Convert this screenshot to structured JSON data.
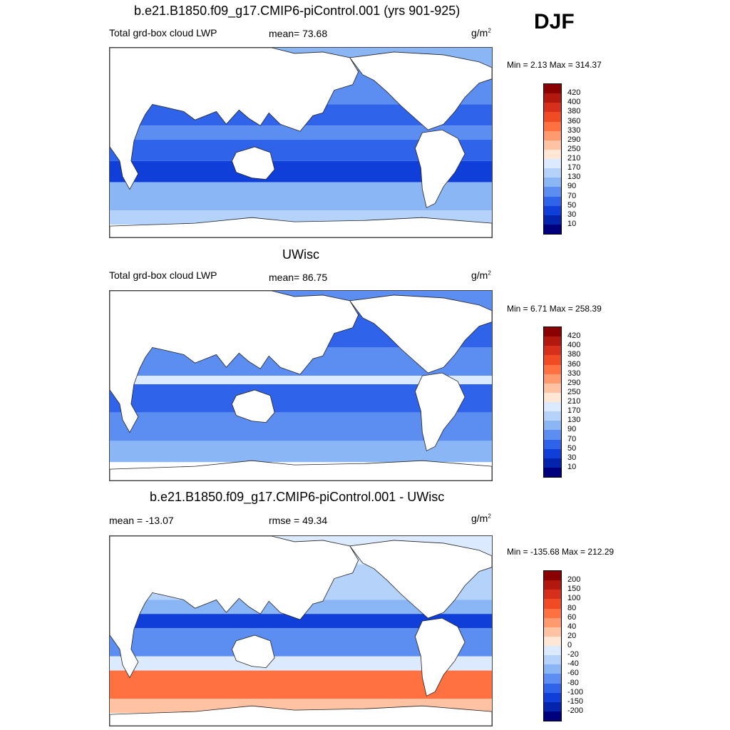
{
  "season": "DJF",
  "panels": [
    {
      "title": "b.e21.B1850.f09_g17.CMIP6-piControl.001 (yrs 901-925)",
      "left_label": "Total grd-box cloud LWP",
      "stat_label": "mean=  73.68",
      "units": "g/m",
      "units_sup": "2",
      "minmax": "Min =   2.13 Max = 314.37",
      "colorbar_labels": [
        "420",
        "400",
        "380",
        "360",
        "330",
        "290",
        "250",
        "210",
        "170",
        "130",
        "90",
        "70",
        "50",
        "30",
        "10"
      ]
    },
    {
      "title": "UWisc",
      "left_label": "Total grd-box cloud LWP",
      "stat_label": "mean=  86.75",
      "units": "g/m",
      "units_sup": "2",
      "minmax": "Min =   6.71 Max = 258.39",
      "colorbar_labels": [
        "420",
        "400",
        "380",
        "360",
        "330",
        "290",
        "250",
        "210",
        "170",
        "130",
        "90",
        "70",
        "50",
        "30",
        "10"
      ]
    },
    {
      "title": "b.e21.B1850.f09_g17.CMIP6-piControl.001 - UWisc",
      "left_label": "mean = -13.07",
      "stat_label": "rmse =  49.34",
      "units": "g/m",
      "units_sup": "2",
      "minmax": "Min = -135.68 Max = 212.29",
      "colorbar_labels": [
        "200",
        "150",
        "100",
        "80",
        "60",
        "40",
        "20",
        "0",
        "-20",
        "-40",
        "-60",
        "-80",
        "-100",
        "-150",
        "-200"
      ]
    }
  ],
  "colors": {
    "scale16": [
      "#8b0000",
      "#b2180e",
      "#d6301c",
      "#f04b24",
      "#ff7140",
      "#ff9a6e",
      "#ffc2a3",
      "#ffe6d5",
      "#dbeaff",
      "#b5d2fb",
      "#8bb6f5",
      "#5c8df0",
      "#2f63ea",
      "#0f3fd8",
      "#0424ad",
      "#00007f"
    ],
    "land": "#ffffff",
    "coast": "#222222"
  }
}
